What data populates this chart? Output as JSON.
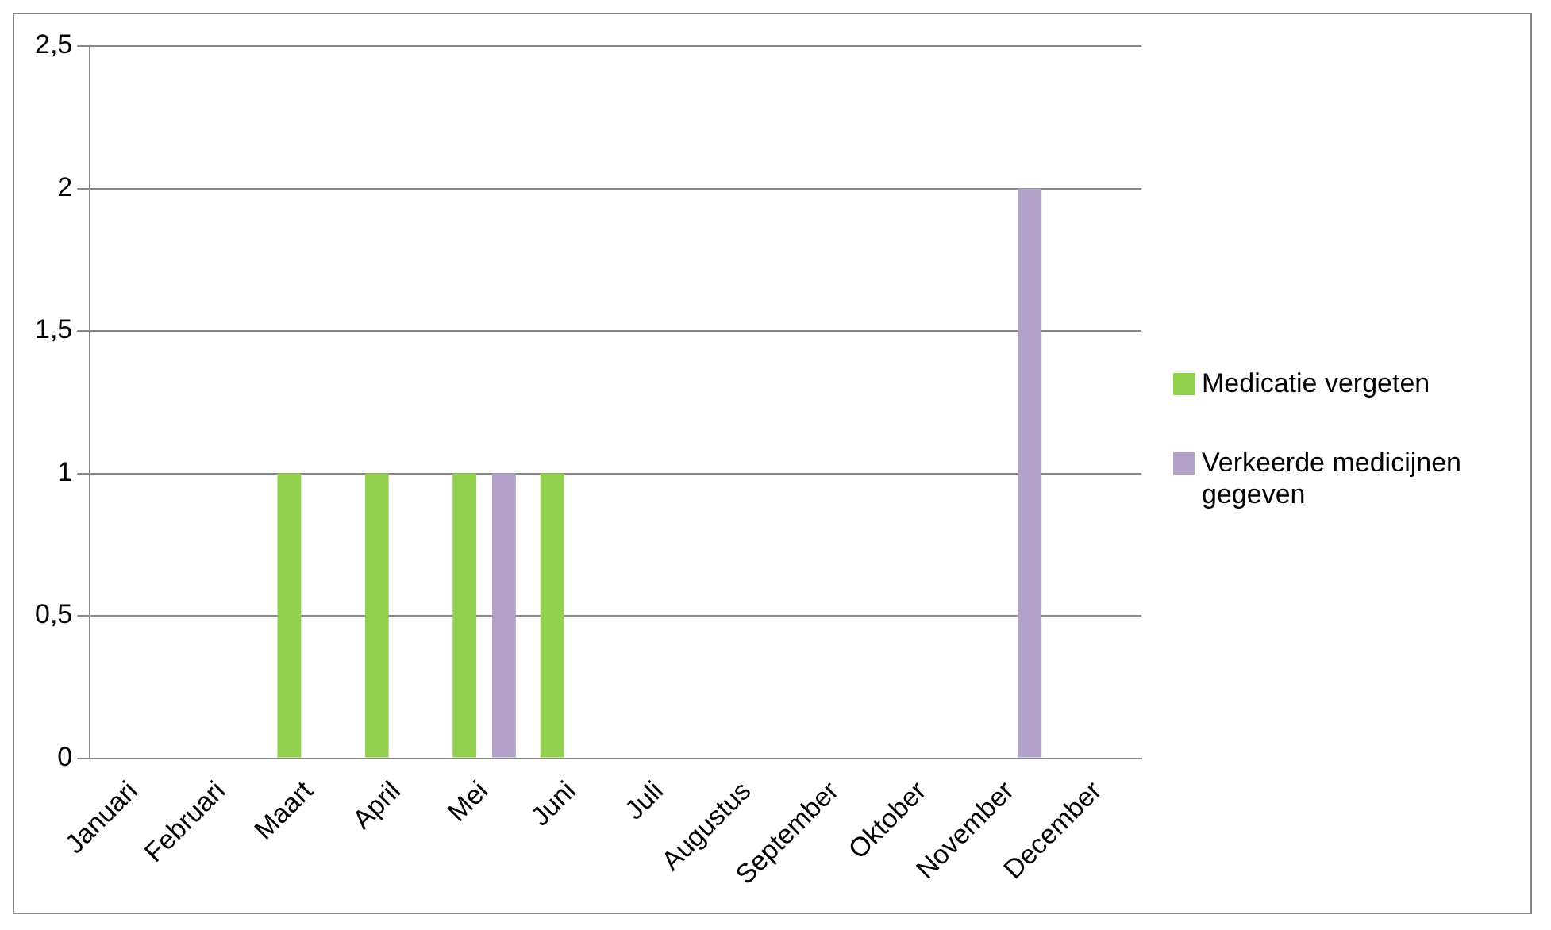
{
  "chart_data": {
    "type": "bar",
    "categories": [
      "Januari",
      "Februari",
      "Maart",
      "April",
      "Mei",
      "Juni",
      "Juli",
      "Augustus",
      "September",
      "Oktober",
      "November",
      "December"
    ],
    "series": [
      {
        "name": "Medicatie vergeten",
        "color": "#92d050",
        "values": [
          0,
          0,
          1,
          1,
          1,
          1,
          0,
          0,
          0,
          0,
          0,
          0
        ]
      },
      {
        "name": "Verkeerde medicijnen gegeven",
        "color": "#b3a2c7",
        "values": [
          0,
          0,
          0,
          0,
          1,
          0,
          0,
          0,
          0,
          0,
          2,
          0
        ]
      }
    ],
    "ylim": [
      0,
      2.5
    ],
    "yticks": [
      0,
      {
        "value": 0.5,
        "label": "0,5"
      },
      1,
      {
        "value": 1.5,
        "label": "1,5"
      },
      2,
      {
        "value": 2.5,
        "label": "2,5"
      }
    ],
    "grid": "y",
    "legend": "right"
  }
}
